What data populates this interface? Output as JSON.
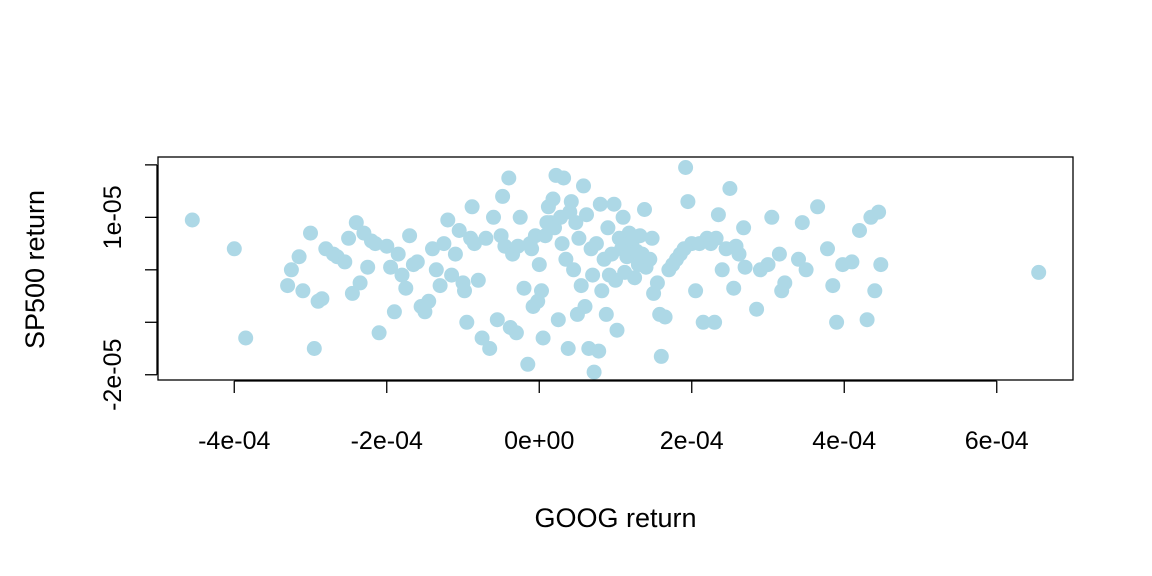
{
  "chart_data": {
    "type": "scatter",
    "title": "",
    "xlabel": "GOOG return",
    "ylabel": "SP500 return",
    "xlim": [
      -0.0005,
      0.0007
    ],
    "ylim": [
      -2.1e-05,
      2.15e-05
    ],
    "xticks": [
      {
        "value": -0.0004,
        "label": "-4e-04"
      },
      {
        "value": -0.0002,
        "label": "-2e-04"
      },
      {
        "value": 0.0,
        "label": "0e+00"
      },
      {
        "value": 0.0002,
        "label": "2e-04"
      },
      {
        "value": 0.0004,
        "label": "4e-04"
      },
      {
        "value": 0.0006,
        "label": "6e-04"
      }
    ],
    "yticks": [
      {
        "value": -2e-05,
        "label": "-2e-05"
      },
      {
        "value": -1e-05,
        "label": ""
      },
      {
        "value": 0.0,
        "label": ""
      },
      {
        "value": 1e-05,
        "label": "1e-05"
      },
      {
        "value": 2e-05,
        "label": ""
      }
    ],
    "point_color": "#add8e6",
    "grid": false,
    "legend": "none",
    "points": [
      [
        -0.000455,
        9.5e-06
      ],
      [
        -0.0004,
        4e-06
      ],
      [
        -0.000385,
        -1.3e-05
      ],
      [
        -0.00033,
        -3e-06
      ],
      [
        -0.000325,
        0.0
      ],
      [
        -0.000315,
        2.5e-06
      ],
      [
        -0.00031,
        -4e-06
      ],
      [
        -0.0003,
        7e-06
      ],
      [
        -0.000295,
        -1.5e-05
      ],
      [
        -0.00029,
        -6e-06
      ],
      [
        -0.000285,
        -5.5e-06
      ],
      [
        -0.00028,
        4e-06
      ],
      [
        -0.00027,
        3e-06
      ],
      [
        -0.000265,
        2.5e-06
      ],
      [
        -0.000255,
        1.5e-06
      ],
      [
        -0.00025,
        6e-06
      ],
      [
        -0.000245,
        -4.5e-06
      ],
      [
        -0.00024,
        9e-06
      ],
      [
        -0.000235,
        -2.5e-06
      ],
      [
        -0.00023,
        7e-06
      ],
      [
        -0.000225,
        5e-07
      ],
      [
        -0.00022,
        5.5e-06
      ],
      [
        -0.000215,
        5e-06
      ],
      [
        -0.00021,
        -1.2e-05
      ],
      [
        -0.0002,
        4.5e-06
      ],
      [
        -0.000195,
        5e-07
      ],
      [
        -0.00019,
        -8e-06
      ],
      [
        -0.000185,
        3e-06
      ],
      [
        -0.00018,
        -1e-06
      ],
      [
        -0.000175,
        -3.5e-06
      ],
      [
        -0.00017,
        6.5e-06
      ],
      [
        -0.000165,
        1e-06
      ],
      [
        -0.00016,
        1.5e-06
      ],
      [
        -0.000155,
        -7e-06
      ],
      [
        -0.00015,
        -8e-06
      ],
      [
        -0.000145,
        -6e-06
      ],
      [
        -0.00014,
        4e-06
      ],
      [
        -0.000135,
        0.0
      ],
      [
        -0.00013,
        -3e-06
      ],
      [
        -0.000125,
        5e-06
      ],
      [
        -0.00012,
        9.5e-06
      ],
      [
        -0.000115,
        -1e-06
      ],
      [
        -0.00011,
        3e-06
      ],
      [
        -0.000105,
        7.5e-06
      ],
      [
        -0.0001,
        -2.5e-06
      ],
      [
        -9.8e-05,
        -4e-06
      ],
      [
        -9.5e-05,
        -1e-05
      ],
      [
        -9e-05,
        6e-06
      ],
      [
        -8.8e-05,
        1.2e-05
      ],
      [
        -8.5e-05,
        5e-06
      ],
      [
        -8e-05,
        -2e-06
      ],
      [
        -7.5e-05,
        -1.3e-05
      ],
      [
        -7e-05,
        6e-06
      ],
      [
        -6.5e-05,
        -1.5e-05
      ],
      [
        -6e-05,
        1e-05
      ],
      [
        -5.5e-05,
        -9.5e-06
      ],
      [
        -5e-05,
        6.5e-06
      ],
      [
        -4.8e-05,
        1.4e-05
      ],
      [
        -4.5e-05,
        4.5e-06
      ],
      [
        -4e-05,
        1.75e-05
      ],
      [
        -3.8e-05,
        -1.1e-05
      ],
      [
        -3.5e-05,
        3e-06
      ],
      [
        -3e-05,
        -1.2e-05
      ],
      [
        -2.8e-05,
        4.5e-06
      ],
      [
        -2.5e-05,
        1e-05
      ],
      [
        -2e-05,
        -3.5e-06
      ],
      [
        -1.5e-05,
        -1.8e-05
      ],
      [
        -1.2e-05,
        5e-06
      ],
      [
        -1e-05,
        4e-06
      ],
      [
        -8e-06,
        -7e-06
      ],
      [
        -5e-06,
        6.5e-06
      ],
      [
        -2e-06,
        -6e-06
      ],
      [
        0.0,
        1e-06
      ],
      [
        3e-06,
        -4e-06
      ],
      [
        5e-06,
        -1.3e-05
      ],
      [
        8e-06,
        6.5e-06
      ],
      [
        1e-05,
        9e-06
      ],
      [
        1.2e-05,
        1.2e-05
      ],
      [
        1.5e-05,
        9e-06
      ],
      [
        1.8e-05,
        1.35e-05
      ],
      [
        2e-05,
        8e-06
      ],
      [
        2.2e-05,
        1.8e-05
      ],
      [
        2.5e-05,
        -9.5e-06
      ],
      [
        2.8e-05,
        1e-05
      ],
      [
        3e-05,
        5e-06
      ],
      [
        3.2e-05,
        1.75e-05
      ],
      [
        3.5e-05,
        2e-06
      ],
      [
        3.8e-05,
        -1.5e-05
      ],
      [
        4e-05,
        1.1e-05
      ],
      [
        4.2e-05,
        1.3e-05
      ],
      [
        4.5e-05,
        0.0
      ],
      [
        4.8e-05,
        9e-06
      ],
      [
        5e-05,
        -8.5e-06
      ],
      [
        5.2e-05,
        6e-06
      ],
      [
        5.5e-05,
        -3e-06
      ],
      [
        5.8e-05,
        1.6e-05
      ],
      [
        6e-05,
        -7e-06
      ],
      [
        6.2e-05,
        1.05e-05
      ],
      [
        6.5e-05,
        -1.5e-05
      ],
      [
        6.8e-05,
        4e-06
      ],
      [
        7e-05,
        -1e-06
      ],
      [
        7.2e-05,
        -1.95e-05
      ],
      [
        7.5e-05,
        5e-06
      ],
      [
        7.8e-05,
        -1.55e-05
      ],
      [
        8e-05,
        1.25e-05
      ],
      [
        8.2e-05,
        -4e-06
      ],
      [
        8.5e-05,
        2e-06
      ],
      [
        8.8e-05,
        -8.5e-06
      ],
      [
        9e-05,
        8e-06
      ],
      [
        9.2e-05,
        -1e-06
      ],
      [
        9.5e-05,
        3e-06
      ],
      [
        9.8e-05,
        1.25e-05
      ],
      [
        0.0001,
        -2e-06
      ],
      [
        0.000102,
        -1.15e-05
      ],
      [
        0.000105,
        6e-06
      ],
      [
        0.000108,
        4e-06
      ],
      [
        0.00011,
        1e-05
      ],
      [
        0.000112,
        -5e-07
      ],
      [
        0.000115,
        2.5e-06
      ],
      [
        0.000118,
        7e-06
      ],
      [
        0.00012,
        4e-06
      ],
      [
        0.000122,
        5.5e-06
      ],
      [
        0.000125,
        -1.5e-06
      ],
      [
        0.000128,
        3.5e-06
      ],
      [
        0.00013,
        1e-06
      ],
      [
        0.000132,
        6.5e-06
      ],
      [
        0.000135,
        3e-06
      ],
      [
        0.000138,
        1.15e-05
      ],
      [
        0.00014,
        5e-07
      ],
      [
        0.000145,
        2e-06
      ],
      [
        0.000148,
        6e-06
      ],
      [
        0.00015,
        -4.5e-06
      ],
      [
        0.000155,
        -2.5e-06
      ],
      [
        0.000158,
        -8.5e-06
      ],
      [
        0.00016,
        -1.65e-05
      ],
      [
        0.000165,
        -9e-06
      ],
      [
        0.00017,
        0.0
      ],
      [
        0.000175,
        1e-06
      ],
      [
        0.00018,
        2e-06
      ],
      [
        0.000185,
        3e-06
      ],
      [
        0.00019,
        4e-06
      ],
      [
        0.000192,
        1.95e-05
      ],
      [
        0.000195,
        1.3e-05
      ],
      [
        0.0002,
        5e-06
      ],
      [
        0.000205,
        -4e-06
      ],
      [
        0.00021,
        5e-06
      ],
      [
        0.000215,
        -1e-05
      ],
      [
        0.00022,
        6e-06
      ],
      [
        0.000225,
        5e-06
      ],
      [
        0.00023,
        -1e-05
      ],
      [
        0.000232,
        6e-06
      ],
      [
        0.000235,
        1.05e-05
      ],
      [
        0.00024,
        0.0
      ],
      [
        0.000245,
        4e-06
      ],
      [
        0.00025,
        1.55e-05
      ],
      [
        0.000255,
        -3.5e-06
      ],
      [
        0.000258,
        4.5e-06
      ],
      [
        0.000262,
        3e-06
      ],
      [
        0.000268,
        8e-06
      ],
      [
        0.00027,
        5e-07
      ],
      [
        0.000285,
        -7.5e-06
      ],
      [
        0.00029,
        0.0
      ],
      [
        0.0003,
        1e-06
      ],
      [
        0.000305,
        1e-05
      ],
      [
        0.000315,
        3e-06
      ],
      [
        0.000318,
        -4e-06
      ],
      [
        0.000322,
        -2.5e-06
      ],
      [
        0.00034,
        2e-06
      ],
      [
        0.000345,
        9e-06
      ],
      [
        0.00035,
        0.0
      ],
      [
        0.000365,
        1.2e-05
      ],
      [
        0.000378,
        4e-06
      ],
      [
        0.000385,
        -3e-06
      ],
      [
        0.00039,
        -1e-05
      ],
      [
        0.000398,
        1e-06
      ],
      [
        0.00041,
        1.5e-06
      ],
      [
        0.00042,
        7.5e-06
      ],
      [
        0.00043,
        -9.5e-06
      ],
      [
        0.000435,
        1e-05
      ],
      [
        0.00044,
        -4e-06
      ],
      [
        0.000445,
        1.1e-05
      ],
      [
        0.000448,
        1e-06
      ],
      [
        0.000655,
        -5e-07
      ]
    ]
  }
}
